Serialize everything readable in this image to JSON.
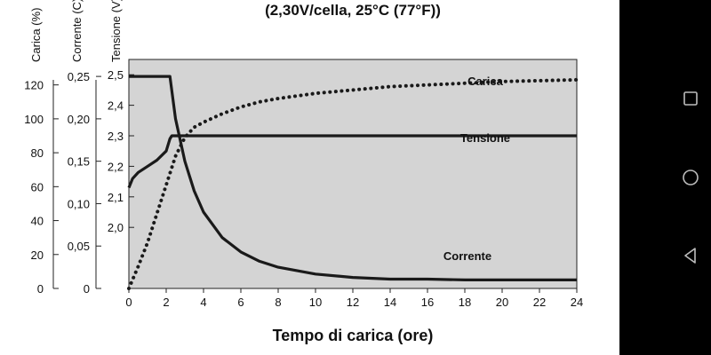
{
  "chart_data": {
    "type": "line",
    "title": "(2,30V/cella, 25°C (77°F))",
    "xlabel": "Tempo di carica (ore)",
    "xlim": [
      0,
      24
    ],
    "x_ticks": [
      "0",
      "2",
      "4",
      "6",
      "8",
      "10",
      "12",
      "14",
      "16",
      "18",
      "20",
      "22",
      "24"
    ],
    "y_axes": [
      {
        "label": "Carica (%)",
        "ylim": [
          0,
          135
        ],
        "ticks": [
          "0",
          "20",
          "40",
          "60",
          "80",
          "100",
          "120"
        ]
      },
      {
        "label": "Corrente (C)",
        "ylim": [
          0,
          0.27
        ],
        "ticks": [
          "0",
          "0,05",
          "0,10",
          "0,15",
          "0,20",
          "0,25"
        ]
      },
      {
        "label": "Tensione (V)",
        "ylim": [
          1.8,
          2.55
        ],
        "ticks": [
          "2,0",
          "2,1",
          "2,2",
          "2,3",
          "2,4",
          "2,5"
        ]
      }
    ],
    "grid": false,
    "series": [
      {
        "name": "Carica",
        "axis": 0,
        "style": "dotted",
        "x": [
          0,
          0.5,
          1,
          1.5,
          2,
          2.5,
          3,
          3.5,
          4,
          5,
          6,
          7,
          8,
          10,
          12,
          14,
          16,
          18,
          20,
          22,
          24
        ],
        "y": [
          0,
          13,
          27,
          44,
          61,
          78,
          89,
          95,
          98,
          103,
          107,
          110,
          112,
          115,
          117,
          119,
          120,
          121,
          122,
          122.5,
          123
        ]
      },
      {
        "name": "Tensione",
        "axis": 2,
        "style": "solid",
        "x": [
          0,
          0.2,
          0.5,
          1,
          1.5,
          2,
          2.2,
          2.3,
          24
        ],
        "y": [
          2.13,
          2.16,
          2.18,
          2.2,
          2.22,
          2.25,
          2.29,
          2.3,
          2.3
        ]
      },
      {
        "name": "Corrente",
        "axis": 1,
        "style": "solid",
        "x": [
          0,
          2.2,
          2.5,
          3,
          3.5,
          4,
          5,
          6,
          7,
          8,
          10,
          12,
          14,
          16,
          18,
          20,
          22,
          24
        ],
        "y": [
          0.25,
          0.25,
          0.2,
          0.15,
          0.115,
          0.09,
          0.06,
          0.043,
          0.032,
          0.025,
          0.017,
          0.013,
          0.011,
          0.011,
          0.01,
          0.01,
          0.01,
          0.01
        ]
      }
    ],
    "plot_background": "#d4d4d4",
    "line_color": "#1a1a1a"
  },
  "system_nav": {
    "buttons": [
      "recent-apps",
      "home",
      "back"
    ]
  }
}
